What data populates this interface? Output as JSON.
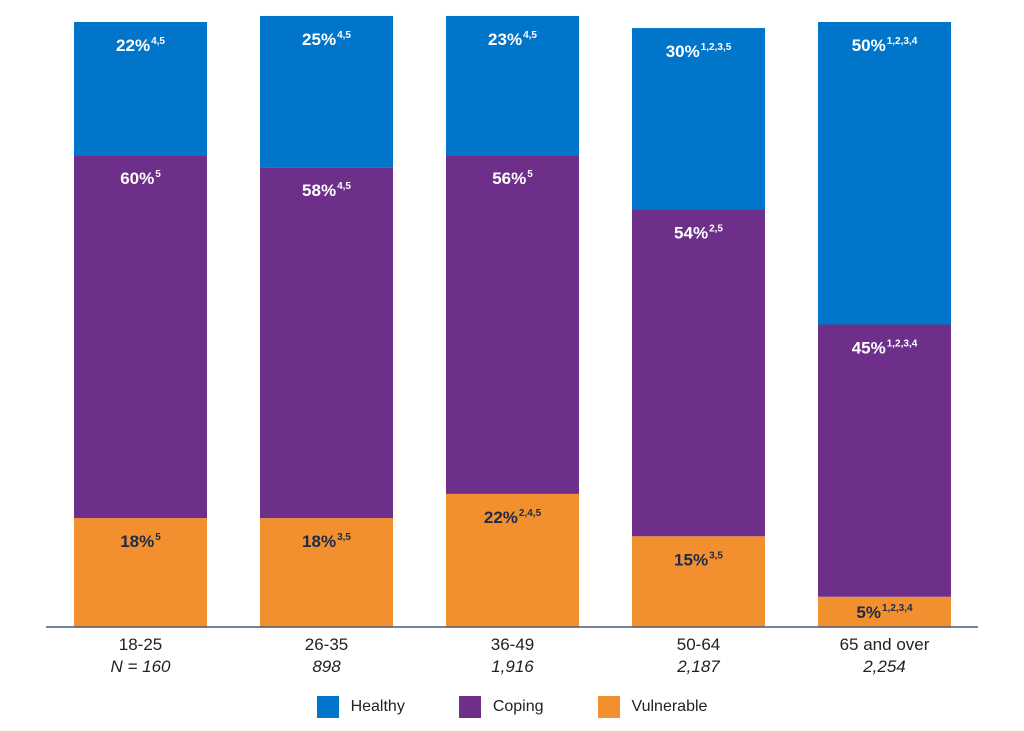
{
  "chart_data": {
    "type": "bar",
    "stacked": true,
    "ylim": [
      0,
      100
    ],
    "categories": [
      "18-25",
      "26-35",
      "36-49",
      "50-64",
      "65 and over"
    ],
    "sample_sizes": [
      "N = 160",
      "898",
      "1,916",
      "2,187",
      "2,254"
    ],
    "series": [
      {
        "name": "Vulnerable",
        "color": "#f28f2f",
        "label_color": "#1f2a44",
        "values": [
          18,
          18,
          22,
          15,
          5
        ],
        "labels": [
          "18%",
          "18%",
          "22%",
          "15%",
          "5%"
        ],
        "superscripts": [
          "5",
          "3,5",
          "2,4,5",
          "3,5",
          "1,2,3,4"
        ]
      },
      {
        "name": "Coping",
        "color": "#6e2f8a",
        "label_color": "#ffffff",
        "values": [
          60,
          58,
          56,
          54,
          45
        ],
        "labels": [
          "60%",
          "58%",
          "56%",
          "54%",
          "45%"
        ],
        "superscripts": [
          "5",
          "4,5",
          "5",
          "2,5",
          "1,2,3,4"
        ]
      },
      {
        "name": "Healthy",
        "color": "#0075c9",
        "label_color": "#ffffff",
        "values": [
          22,
          25,
          23,
          30,
          50
        ],
        "labels": [
          "22%",
          "25%",
          "23%",
          "30%",
          "50%"
        ],
        "superscripts": [
          "4,5",
          "4,5",
          "4,5",
          "1,2,3,5",
          "1,2,3,4"
        ]
      }
    ],
    "legend": {
      "position": "bottom",
      "items": [
        {
          "name": "Healthy",
          "color": "#0075c9"
        },
        {
          "name": "Coping",
          "color": "#6e2f8a"
        },
        {
          "name": "Vulnerable",
          "color": "#f28f2f"
        }
      ]
    },
    "axis_color": "#4a5a7a"
  }
}
